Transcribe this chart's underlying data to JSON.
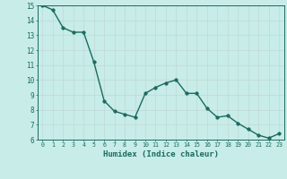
{
  "x": [
    0,
    1,
    2,
    3,
    4,
    5,
    6,
    7,
    8,
    9,
    10,
    11,
    12,
    13,
    14,
    15,
    16,
    17,
    18,
    19,
    20,
    21,
    22,
    23
  ],
  "y": [
    15.0,
    14.7,
    13.5,
    13.2,
    13.2,
    11.2,
    8.6,
    7.9,
    7.7,
    7.5,
    9.1,
    9.5,
    9.8,
    10.0,
    9.1,
    9.1,
    8.1,
    7.5,
    7.6,
    7.1,
    6.7,
    6.3,
    6.1,
    6.4
  ],
  "xlabel": "Humidex (Indice chaleur)",
  "ylim": [
    6,
    15
  ],
  "xlim": [
    -0.5,
    23.5
  ],
  "yticks": [
    6,
    7,
    8,
    9,
    10,
    11,
    12,
    13,
    14,
    15
  ],
  "xticks": [
    0,
    1,
    2,
    3,
    4,
    5,
    6,
    7,
    8,
    9,
    10,
    11,
    12,
    13,
    14,
    15,
    16,
    17,
    18,
    19,
    20,
    21,
    22,
    23
  ],
  "line_color": "#1a6b5e",
  "marker_color": "#1a6b5e",
  "bg_color": "#c8ece8",
  "grid_color": "#c0dcd8",
  "tick_color": "#1a6b5e",
  "label_color": "#1a6b5e"
}
